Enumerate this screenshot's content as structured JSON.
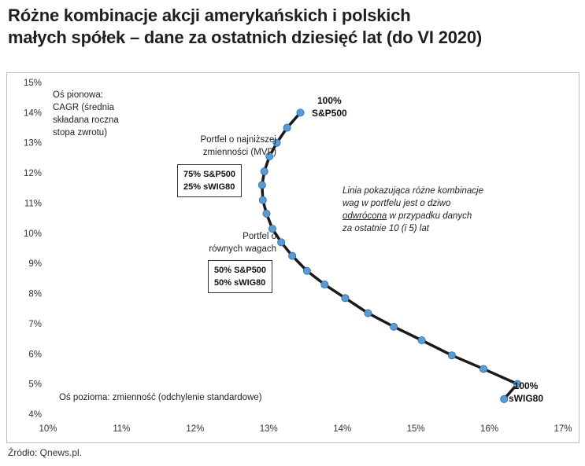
{
  "title_lines": [
    "Różne kombinacje akcji amerykańskich i polskich",
    "małych spółek – dane za ostatnich dziesięć lat (do VI 2020)"
  ],
  "source": "Źródło: Qnews.pl.",
  "annotations": {
    "y_axis_note": [
      "Oś pionowa:",
      "CAGR (średnia",
      "składana roczna",
      "stopa zwrotu)"
    ],
    "x_axis_note": "Oś pozioma: zmienność (odchylenie standardowe)",
    "mvp_label": [
      "Portfel o najniższej",
      "zmienności (MVP)"
    ],
    "mvp_box": [
      "75% S&P500",
      "25% sWIG80"
    ],
    "equal_label": [
      "Portfel o",
      "równych wagach"
    ],
    "equal_box": [
      "50% S&P500",
      "50% sWIG80"
    ],
    "top_box": [
      "100%",
      "S&P500"
    ],
    "bottom_box": [
      "100%",
      "sWIG80"
    ],
    "note_line1": "Linia pokazująca różne kombinacje",
    "note_line2": "wag w portfelu jest o dziwo",
    "note_underlined": "odwrócona",
    "note_line3_rest": " w przypadku danych",
    "note_line4": "za ostatnie 10 (i 5) lat"
  },
  "colors": {
    "line": "#1a1a1a",
    "marker": "#5b9bd5",
    "grid": "#d9d9d9"
  },
  "chart_data": {
    "type": "line",
    "title": "Różne kombinacje akcji amerykańskich i polskich małych spółek – dane za ostatnich dziesięć lat (do VI 2020)",
    "xlabel": "Oś pozioma: zmienność (odchylenie standardowe)",
    "ylabel": "Oś pionowa: CAGR (średnia składana roczna stopa zwrotu)",
    "xlim": [
      10,
      17
    ],
    "ylim": [
      4,
      15
    ],
    "x_ticks": [
      "10%",
      "11%",
      "12%",
      "13%",
      "14%",
      "15%",
      "16%",
      "17%"
    ],
    "y_ticks": [
      "4%",
      "5%",
      "6%",
      "7%",
      "8%",
      "9%",
      "10%",
      "11%",
      "12%",
      "13%",
      "14%",
      "15%"
    ],
    "grid": false,
    "series": [
      {
        "x": [
          13.43,
          13.25,
          13.11,
          13.01,
          12.94,
          12.91,
          12.92,
          12.97,
          13.05,
          13.17,
          13.32,
          13.52,
          13.76,
          14.04,
          14.35,
          14.7,
          15.08,
          15.49,
          15.92,
          16.38
        ],
        "y": [
          14.0,
          13.5,
          13.0,
          12.55,
          12.05,
          11.6,
          11.1,
          10.65,
          10.15,
          9.7,
          9.25,
          8.75,
          8.3,
          7.85,
          7.35,
          6.9,
          6.45,
          5.95,
          5.5,
          5.0
        ]
      }
    ],
    "extra_points": [
      {
        "x": 16.2,
        "y": 4.5
      }
    ]
  }
}
